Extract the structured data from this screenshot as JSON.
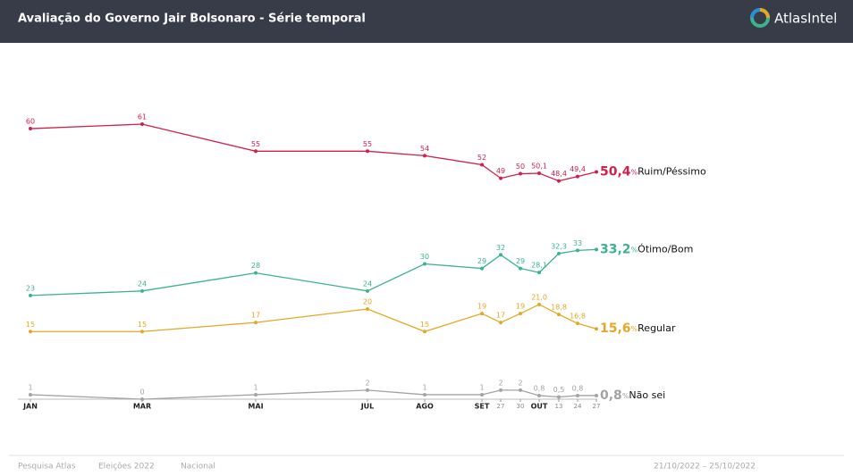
{
  "header": {
    "title": "Avaliação do Governo Jair Bolsonaro - Série temporal",
    "logo": "AtlasIntel"
  },
  "chart_data": {
    "type": "line",
    "categories": [
      "JAN",
      "MAR",
      "MAI",
      "JUL",
      "AGO",
      "SET",
      "27",
      "30",
      "OUT",
      "13",
      "24",
      "27"
    ],
    "unit": "%",
    "series": [
      {
        "name": "Ruim/Péssimo",
        "color": "#d21f4b",
        "values": [
          60,
          61,
          55,
          55,
          54,
          52,
          49,
          50,
          50.1,
          48.4,
          49.4,
          50.4
        ],
        "value_labels": [
          "60",
          "61",
          "55",
          "55",
          "54",
          "52",
          "49",
          "50",
          "50,1",
          "48,4",
          "49,4",
          "50,4"
        ]
      },
      {
        "name": "Ótimo/Bom",
        "color": "#3bb38e",
        "values": [
          23,
          24,
          28,
          24,
          30,
          29,
          32,
          29,
          28.1,
          32.3,
          33,
          33.2
        ],
        "value_labels": [
          "23",
          "24",
          "28",
          "24",
          "30",
          "29",
          "32",
          "29",
          "28,1",
          "32,3",
          "33",
          "33,2"
        ]
      },
      {
        "name": "Regular",
        "color": "#e5a823",
        "values": [
          15,
          15,
          17,
          20,
          15,
          19,
          17,
          19,
          21.0,
          18.8,
          16.8,
          15.6
        ],
        "value_labels": [
          "15",
          "15",
          "17",
          "20",
          "15",
          "19",
          "17",
          "19",
          "21,0",
          "18,8",
          "16,8",
          "15,6"
        ]
      },
      {
        "name": "Não sei",
        "color": "#a3a3a3",
        "values": [
          1,
          0,
          1,
          2,
          1,
          1,
          2,
          2,
          0.8,
          0.5,
          0.8,
          0.8
        ],
        "value_labels": [
          "1",
          "0",
          "1",
          "2",
          "1",
          "1",
          "2",
          "2",
          "0,8",
          "0,5",
          "0,8",
          "0,8"
        ]
      }
    ]
  },
  "footer": {
    "items": [
      "Pesquisa Atlas",
      "Eleições 2022",
      "Nacional"
    ],
    "date": "21/10/2022 – 25/10/2022"
  }
}
